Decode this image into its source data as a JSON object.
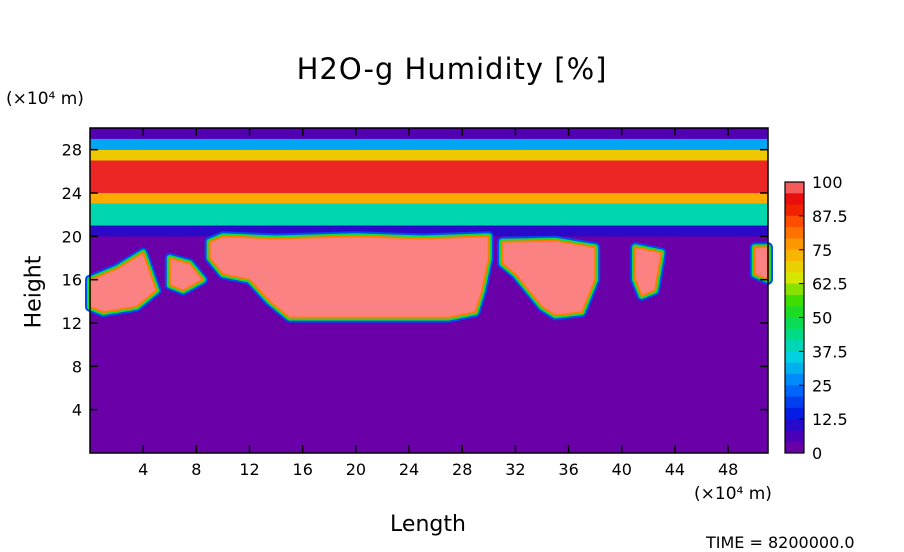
{
  "chart_data": {
    "type": "heatmap",
    "title": "H2O-g Humidity [%]",
    "xlabel": "Length",
    "ylabel": "Height",
    "x_unit": "(×10⁴ m)",
    "y_unit": "(×10⁴ m)",
    "xlim": [
      0,
      51
    ],
    "ylim": [
      0,
      30
    ],
    "x_ticks": [
      4,
      8,
      12,
      16,
      20,
      24,
      28,
      32,
      36,
      40,
      44,
      48
    ],
    "y_ticks": [
      4,
      8,
      12,
      16,
      20,
      24,
      28
    ],
    "colorbar": {
      "ticks": [
        "100",
        "87.5",
        "75",
        "62.5",
        "50",
        "37.5",
        "25",
        "12.5",
        "0"
      ],
      "range": [
        0,
        100
      ]
    },
    "bands": [
      {
        "from": 20,
        "to": 21,
        "value": 10
      },
      {
        "from": 21,
        "to": 23,
        "value": 40
      },
      {
        "from": 23,
        "to": 24,
        "value": 75
      },
      {
        "from": 24,
        "to": 27,
        "value": 95
      },
      {
        "from": 27,
        "to": 28,
        "value": 70
      },
      {
        "from": 28,
        "to": 29,
        "value": 30
      },
      {
        "from": 29,
        "to": 30,
        "value": 5
      }
    ],
    "background_value": 2,
    "moist_regions": [
      {
        "points": [
          [
            0,
            16
          ],
          [
            2,
            17
          ],
          [
            4,
            18.5
          ],
          [
            5,
            15
          ],
          [
            3.5,
            13.5
          ],
          [
            1,
            13
          ],
          [
            0,
            13.5
          ]
        ],
        "value": 100
      },
      {
        "points": [
          [
            6,
            18
          ],
          [
            7.5,
            17.5
          ],
          [
            8.5,
            16
          ],
          [
            7,
            15
          ],
          [
            6,
            15.5
          ]
        ],
        "value": 100
      },
      {
        "points": [
          [
            10,
            20
          ],
          [
            14,
            19.8
          ],
          [
            20,
            20
          ],
          [
            25,
            19.8
          ],
          [
            30,
            20
          ],
          [
            30,
            18
          ],
          [
            29.5,
            15
          ],
          [
            29,
            13
          ],
          [
            27,
            12.5
          ],
          [
            20,
            12.5
          ],
          [
            15,
            12.5
          ],
          [
            13.5,
            14
          ],
          [
            12,
            16
          ],
          [
            10,
            16.5
          ],
          [
            9,
            18
          ],
          [
            9,
            19.5
          ]
        ],
        "value": 100
      },
      {
        "points": [
          [
            31,
            19.5
          ],
          [
            35,
            19.6
          ],
          [
            38,
            19
          ],
          [
            38,
            16
          ],
          [
            37,
            13
          ],
          [
            35,
            12.7
          ],
          [
            34,
            13.5
          ],
          [
            33,
            15
          ],
          [
            32,
            16.5
          ],
          [
            31,
            17.5
          ]
        ],
        "value": 100
      },
      {
        "points": [
          [
            41,
            19
          ],
          [
            43,
            18.5
          ],
          [
            42.5,
            15
          ],
          [
            41.5,
            14.5
          ],
          [
            41,
            16
          ]
        ],
        "value": 100
      },
      {
        "points": [
          [
            50,
            19
          ],
          [
            51,
            19
          ],
          [
            51,
            16
          ],
          [
            50,
            16.5
          ]
        ],
        "value": 100
      }
    ]
  },
  "footer": {
    "time_text": "TIME = 8200000.0"
  }
}
